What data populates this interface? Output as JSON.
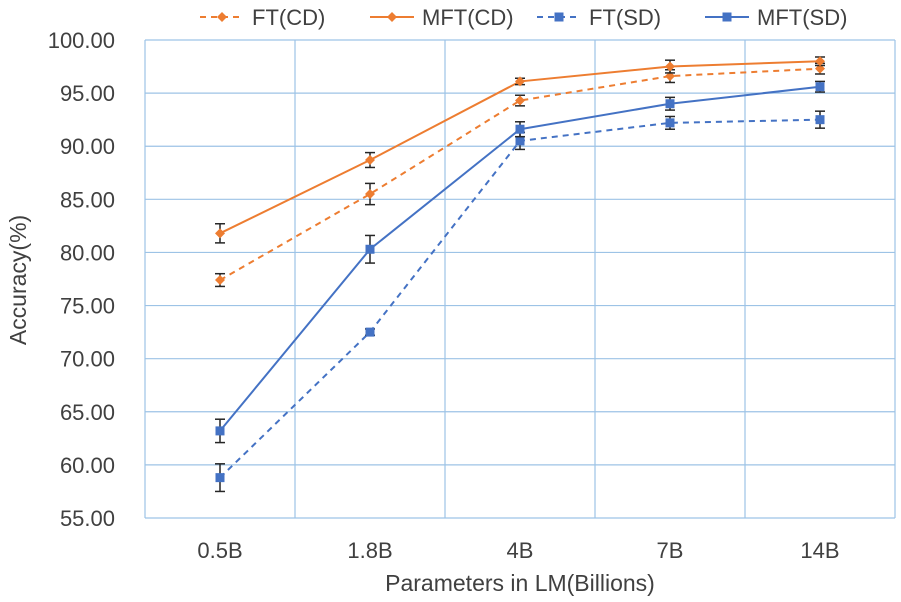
{
  "chart_data": {
    "type": "line",
    "title": "",
    "xlabel": "Parameters in LM(Billions)",
    "ylabel": "Accuracy(%)",
    "categories": [
      "0.5B",
      "1.8B",
      "4B",
      "7B",
      "14B"
    ],
    "ylim": [
      55,
      100
    ],
    "ytick_step": 5,
    "ytick_labels": [
      "55.00",
      "60.00",
      "65.00",
      "70.00",
      "75.00",
      "80.00",
      "85.00",
      "90.00",
      "95.00",
      "100.00"
    ],
    "grid": true,
    "legend_position": "top",
    "series": [
      {
        "name": "FT(CD)",
        "values": [
          77.4,
          85.5,
          94.3,
          96.6,
          97.3
        ],
        "errors": [
          0.6,
          1.0,
          0.5,
          0.6,
          0.5
        ],
        "color": "#ED7D31",
        "dash": "dashed",
        "marker": "diamond"
      },
      {
        "name": "MFT(CD)",
        "values": [
          81.8,
          88.7,
          96.1,
          97.5,
          98.0
        ],
        "errors": [
          0.9,
          0.7,
          0.3,
          0.6,
          0.4
        ],
        "color": "#ED7D31",
        "dash": "solid",
        "marker": "diamond"
      },
      {
        "name": "FT(SD)",
        "values": [
          58.8,
          72.5,
          90.5,
          92.2,
          92.5
        ],
        "errors": [
          1.3,
          0.3,
          0.8,
          0.6,
          0.8
        ],
        "color": "#4472C4",
        "dash": "dashed",
        "marker": "square"
      },
      {
        "name": "MFT(SD)",
        "values": [
          63.2,
          80.3,
          91.6,
          94.0,
          95.6
        ],
        "errors": [
          1.1,
          1.3,
          0.7,
          0.6,
          0.5
        ],
        "color": "#4472C4",
        "dash": "solid",
        "marker": "square"
      }
    ]
  },
  "colors": {
    "grid": "#9DC3E6",
    "text": "#404040",
    "errorbar": "#262626"
  }
}
